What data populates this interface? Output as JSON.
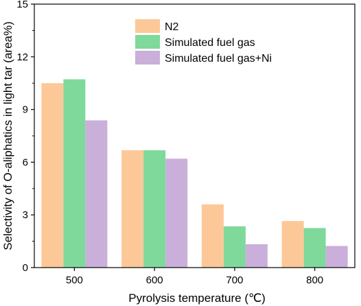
{
  "chart_data": {
    "type": "bar",
    "categories": [
      "500",
      "600",
      "700",
      "800"
    ],
    "series": [
      {
        "name": "N2",
        "values": [
          10.5,
          6.68,
          3.6,
          2.65
        ],
        "color": "#fdc897"
      },
      {
        "name": "Simulated fuel gas",
        "values": [
          10.72,
          6.68,
          2.35,
          2.25
        ],
        "color": "#7fd99b"
      },
      {
        "name": "Simulated fuel gas+Ni",
        "values": [
          8.38,
          6.2,
          1.33,
          1.23
        ],
        "color": "#c9afd9"
      }
    ],
    "xlabel": "Pyrolysis temperature (℃)",
    "ylabel": "Selectivity of O-aliphatics in light tar (area%)",
    "ylim": [
      0,
      15
    ],
    "yticks": [
      "0",
      "3",
      "6",
      "9",
      "12",
      "15"
    ],
    "legend_position": "top-right",
    "grid": false
  }
}
